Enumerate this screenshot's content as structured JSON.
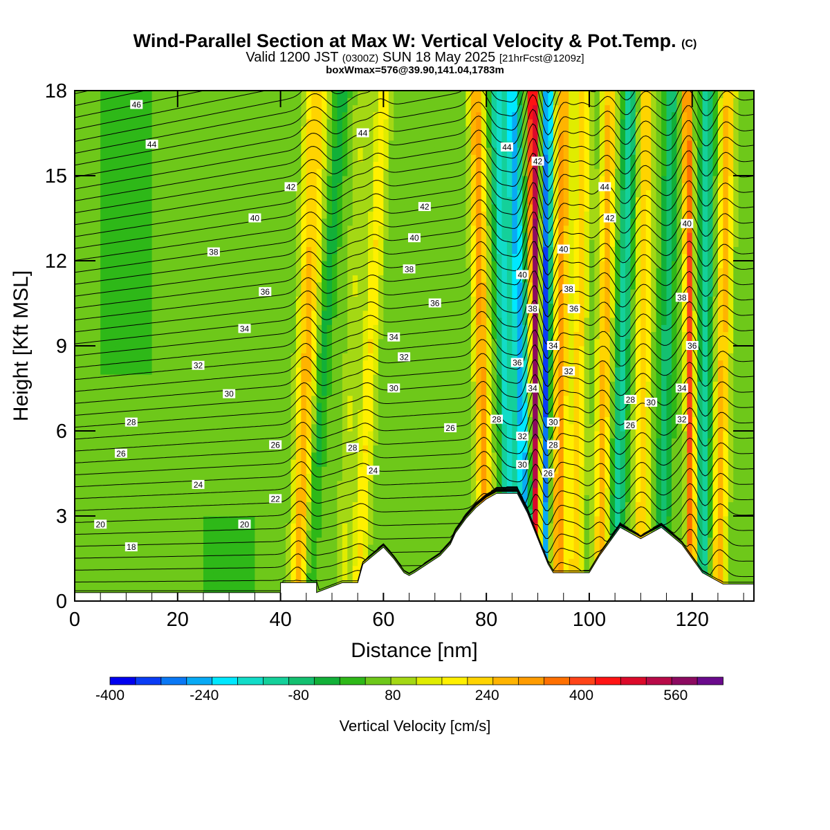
{
  "header": {
    "title_main": "Wind-Parallel Section at Max W: Vertical Velocity & Pot.Temp.",
    "title_mark": "(C)",
    "valid_prefix": "Valid 1200 JST",
    "valid_utc": "(0300Z)",
    "valid_date": "SUN 18 May 2025",
    "forecast": "[21hrFcst@1209z]",
    "boxmax": "boxWmax=576@39.90,141.04,1783m"
  },
  "chart_data": {
    "type": "heatmap",
    "xlabel": "Distance [nm]",
    "ylabel": "Height [Kft MSL]",
    "xlim": [
      0,
      132
    ],
    "ylim": [
      0,
      18
    ],
    "x_ticks": [
      0,
      20,
      40,
      60,
      80,
      100,
      120
    ],
    "y_ticks": [
      0,
      3,
      6,
      9,
      12,
      15,
      18
    ],
    "colorbar": {
      "label": "Vertical Velocity [cm/s]",
      "min": -400,
      "max": 640,
      "step": 40,
      "tick_values": [
        -400,
        -240,
        -80,
        80,
        240,
        400,
        560
      ],
      "tick_labels": [
        "-400",
        "-240",
        "-80",
        "80",
        "240",
        "400",
        "560"
      ],
      "colors": [
        "#0000f0",
        "#0a3cf5",
        "#0a78f5",
        "#08aaf5",
        "#00e8ff",
        "#12dcc8",
        "#14d09a",
        "#14c070",
        "#12b038",
        "#2eb818",
        "#6ec81a",
        "#a4d814",
        "#e0ec00",
        "#fff000",
        "#ffd400",
        "#ffb400",
        "#ff9c00",
        "#ff7000",
        "#ff4418",
        "#ff1414",
        "#dc0a2a",
        "#b80a48",
        "#8c0a60",
        "#6a0a8c"
      ]
    },
    "terrain": {
      "x": [
        0,
        40,
        40,
        47,
        47,
        52,
        55,
        56,
        58,
        60,
        62,
        64,
        65,
        66,
        71,
        73,
        74,
        76,
        78,
        80,
        82,
        86,
        88,
        90,
        92,
        93,
        100,
        102,
        104,
        106,
        110,
        114,
        118,
        122,
        124,
        126,
        128,
        132
      ],
      "y": [
        0.3,
        0.3,
        0.65,
        0.65,
        0.3,
        0.65,
        0.65,
        1.3,
        1.6,
        1.9,
        1.5,
        1.0,
        0.9,
        1.0,
        1.6,
        2.0,
        2.4,
        2.9,
        3.3,
        3.6,
        3.8,
        3.8,
        3.1,
        2.2,
        1.3,
        1.0,
        1.0,
        1.6,
        2.1,
        2.6,
        2.2,
        2.6,
        2.0,
        1.0,
        0.8,
        0.6,
        0.6,
        0.6
      ]
    },
    "wind_field": {
      "description_free_parameters": "shown by fill colors",
      "bands": [
        {
          "x_top": 46,
          "x_bottom": 43,
          "w": 140
        },
        {
          "x_top": 48,
          "x_bottom": 44,
          "w": 120
        },
        {
          "x_top": 52,
          "x_bottom": 45,
          "w": -80
        },
        {
          "x_top": 56,
          "x_bottom": 52,
          "w": 60
        },
        {
          "x_top": 60,
          "x_bottom": 55,
          "w": 140
        },
        {
          "x_top": 78,
          "x_bottom": 80,
          "w": 240
        },
        {
          "x_top": 82,
          "x_bottom": 85,
          "w": -200
        },
        {
          "x_top": 85,
          "x_bottom": 88,
          "w": -280
        },
        {
          "x_top": 89,
          "x_bottom": 90,
          "w": 500
        },
        {
          "x_top": 92,
          "x_bottom": 91,
          "w": -360
        },
        {
          "x_top": 95,
          "x_bottom": 94,
          "w": 240
        },
        {
          "x_top": 99,
          "x_bottom": 97,
          "w": 160
        },
        {
          "x_top": 104,
          "x_bottom": 102,
          "w": 200
        },
        {
          "x_top": 108,
          "x_bottom": 105,
          "w": -160
        },
        {
          "x_top": 111,
          "x_bottom": 110,
          "w": 180
        },
        {
          "x_top": 116,
          "x_bottom": 114,
          "w": -120
        },
        {
          "x_top": 119,
          "x_bottom": 120,
          "w": 320
        },
        {
          "x_top": 123,
          "x_bottom": 122,
          "w": -160
        },
        {
          "x_top": 127,
          "x_bottom": 125,
          "w": 200
        }
      ]
    },
    "theta_contours": {
      "label": "Pot.Temp.",
      "labels": [
        {
          "v": "46",
          "x": 12,
          "y": 17.5
        },
        {
          "v": "44",
          "x": 15,
          "y": 16.1
        },
        {
          "v": "42",
          "x": 42,
          "y": 14.6
        },
        {
          "v": "40",
          "x": 35,
          "y": 13.5
        },
        {
          "v": "38",
          "x": 27,
          "y": 12.3
        },
        {
          "v": "36",
          "x": 37,
          "y": 10.9
        },
        {
          "v": "34",
          "x": 33,
          "y": 9.6
        },
        {
          "v": "32",
          "x": 24,
          "y": 8.3
        },
        {
          "v": "30",
          "x": 30,
          "y": 7.3
        },
        {
          "v": "28",
          "x": 11,
          "y": 6.3
        },
        {
          "v": "26",
          "x": 9,
          "y": 5.2
        },
        {
          "v": "24",
          "x": 24,
          "y": 4.1
        },
        {
          "v": "22",
          "x": 39,
          "y": 3.6
        },
        {
          "v": "20",
          "x": 5,
          "y": 2.7
        },
        {
          "v": "20",
          "x": 33,
          "y": 2.7
        },
        {
          "v": "18",
          "x": 11,
          "y": 1.9
        },
        {
          "v": "26",
          "x": 39,
          "y": 5.5
        },
        {
          "v": "44",
          "x": 56,
          "y": 16.5
        },
        {
          "v": "42",
          "x": 68,
          "y": 13.9
        },
        {
          "v": "40",
          "x": 66,
          "y": 12.8
        },
        {
          "v": "38",
          "x": 65,
          "y": 11.7
        },
        {
          "v": "36",
          "x": 70,
          "y": 10.5
        },
        {
          "v": "34",
          "x": 62,
          "y": 9.3
        },
        {
          "v": "32",
          "x": 64,
          "y": 8.6
        },
        {
          "v": "30",
          "x": 62,
          "y": 7.5
        },
        {
          "v": "28",
          "x": 54,
          "y": 5.4
        },
        {
          "v": "24",
          "x": 58,
          "y": 4.6
        },
        {
          "v": "26",
          "x": 73,
          "y": 6.1
        },
        {
          "v": "44",
          "x": 84,
          "y": 16.0
        },
        {
          "v": "42",
          "x": 90,
          "y": 15.5
        },
        {
          "v": "40",
          "x": 87,
          "y": 11.5
        },
        {
          "v": "40",
          "x": 95,
          "y": 12.4
        },
        {
          "v": "38",
          "x": 89,
          "y": 10.3
        },
        {
          "v": "38",
          "x": 96,
          "y": 11.0
        },
        {
          "v": "36",
          "x": 86,
          "y": 8.4
        },
        {
          "v": "36",
          "x": 97,
          "y": 10.3
        },
        {
          "v": "34",
          "x": 89,
          "y": 7.5
        },
        {
          "v": "34",
          "x": 93,
          "y": 9.0
        },
        {
          "v": "32",
          "x": 87,
          "y": 5.8
        },
        {
          "v": "32",
          "x": 96,
          "y": 8.1
        },
        {
          "v": "30",
          "x": 87,
          "y": 4.8
        },
        {
          "v": "30",
          "x": 93,
          "y": 6.3
        },
        {
          "v": "28",
          "x": 82,
          "y": 6.4
        },
        {
          "v": "28",
          "x": 93,
          "y": 5.5
        },
        {
          "v": "26",
          "x": 92,
          "y": 4.5
        },
        {
          "v": "44",
          "x": 103,
          "y": 14.6
        },
        {
          "v": "42",
          "x": 104,
          "y": 13.5
        },
        {
          "v": "40",
          "x": 119,
          "y": 13.3
        },
        {
          "v": "38",
          "x": 118,
          "y": 10.7
        },
        {
          "v": "36",
          "x": 120,
          "y": 9.0
        },
        {
          "v": "34",
          "x": 118,
          "y": 7.5
        },
        {
          "v": "32",
          "x": 118,
          "y": 6.4
        },
        {
          "v": "30",
          "x": 112,
          "y": 7.0
        },
        {
          "v": "28",
          "x": 108,
          "y": 7.1
        },
        {
          "v": "26",
          "x": 108,
          "y": 6.2
        }
      ]
    }
  }
}
